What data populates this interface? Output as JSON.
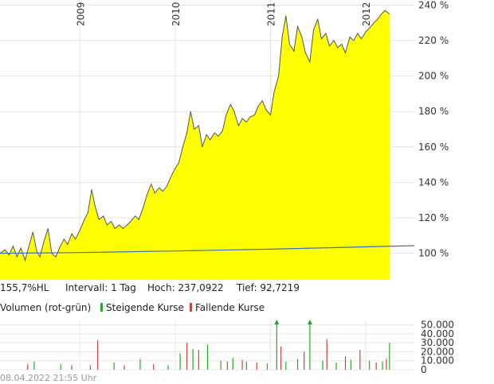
{
  "chart_data": [
    {
      "type": "area",
      "ylabel_unit": "%",
      "x_range": [
        "2008-03-01",
        "2012-07-05"
      ],
      "ylim": [
        85,
        242
      ],
      "y_ticks": [
        100,
        120,
        140,
        160,
        180,
        200,
        220,
        240
      ],
      "y_tick_labels": [
        "100 %",
        "120 %",
        "140 %",
        "160 %",
        "180 %",
        "200 %",
        "220 %",
        "240 %"
      ],
      "x_ticks": [
        "2009-01-01",
        "2010-01-01",
        "2011-01-01",
        "2012-01-01"
      ],
      "x_tick_labels": [
        "2009",
        "2010",
        "2011",
        "2012"
      ],
      "grid": true,
      "series": [
        {
          "color": "#ffff00",
          "points": [
            [
              "2008-03-01",
              100
            ],
            [
              "2008-03-20",
              102
            ],
            [
              "2008-04-05",
              99
            ],
            [
              "2008-04-20",
              104
            ],
            [
              "2008-05-05",
              98
            ],
            [
              "2008-05-20",
              103
            ],
            [
              "2008-06-05",
              96
            ],
            [
              "2008-06-20",
              104
            ],
            [
              "2008-07-05",
              112
            ],
            [
              "2008-07-20",
              101
            ],
            [
              "2008-08-01",
              98
            ],
            [
              "2008-08-15",
              106
            ],
            [
              "2008-09-01",
              114
            ],
            [
              "2008-09-15",
              100
            ],
            [
              "2008-10-01",
              98
            ],
            [
              "2008-10-15",
              103
            ],
            [
              "2008-11-01",
              108
            ],
            [
              "2008-11-15",
              105
            ],
            [
              "2008-12-01",
              111
            ],
            [
              "2008-12-15",
              108
            ],
            [
              "2009-01-01",
              113
            ],
            [
              "2009-01-15",
              118
            ],
            [
              "2009-02-01",
              123
            ],
            [
              "2009-02-15",
              136
            ],
            [
              "2009-03-01",
              126
            ],
            [
              "2009-03-15",
              119
            ],
            [
              "2009-04-01",
              121
            ],
            [
              "2009-04-15",
              116
            ],
            [
              "2009-05-01",
              118
            ],
            [
              "2009-05-15",
              114
            ],
            [
              "2009-06-01",
              116
            ],
            [
              "2009-06-15",
              114
            ],
            [
              "2009-07-01",
              116
            ],
            [
              "2009-07-15",
              118
            ],
            [
              "2009-08-01",
              121
            ],
            [
              "2009-08-15",
              119
            ],
            [
              "2009-09-01",
              126
            ],
            [
              "2009-09-15",
              133
            ],
            [
              "2009-10-01",
              139
            ],
            [
              "2009-10-15",
              134
            ],
            [
              "2009-11-01",
              137
            ],
            [
              "2009-11-15",
              135
            ],
            [
              "2009-12-01",
              138
            ],
            [
              "2009-12-15",
              143
            ],
            [
              "2010-01-01",
              148
            ],
            [
              "2010-01-15",
              151
            ],
            [
              "2010-02-01",
              161
            ],
            [
              "2010-02-15",
              168
            ],
            [
              "2010-03-01",
              180
            ],
            [
              "2010-03-15",
              170
            ],
            [
              "2010-04-01",
              172
            ],
            [
              "2010-04-15",
              160
            ],
            [
              "2010-05-01",
              167
            ],
            [
              "2010-05-15",
              164
            ],
            [
              "2010-06-01",
              168
            ],
            [
              "2010-06-15",
              166
            ],
            [
              "2010-07-01",
              169
            ],
            [
              "2010-07-15",
              178
            ],
            [
              "2010-08-01",
              184
            ],
            [
              "2010-08-15",
              180
            ],
            [
              "2010-09-01",
              172
            ],
            [
              "2010-09-15",
              176
            ],
            [
              "2010-10-01",
              174
            ],
            [
              "2010-10-15",
              177
            ],
            [
              "2010-11-01",
              178
            ],
            [
              "2010-11-15",
              183
            ],
            [
              "2010-12-01",
              186
            ],
            [
              "2010-12-15",
              181
            ],
            [
              "2011-01-01",
              178
            ],
            [
              "2011-01-15",
              191
            ],
            [
              "2011-02-01",
              200
            ],
            [
              "2011-02-15",
              222
            ],
            [
              "2011-03-01",
              234
            ],
            [
              "2011-03-15",
              218
            ],
            [
              "2011-04-01",
              214
            ],
            [
              "2011-04-15",
              228
            ],
            [
              "2011-05-01",
              222
            ],
            [
              "2011-05-15",
              213
            ],
            [
              "2011-06-01",
              208
            ],
            [
              "2011-06-15",
              226
            ],
            [
              "2011-07-01",
              232
            ],
            [
              "2011-07-15",
              221
            ],
            [
              "2011-08-01",
              224
            ],
            [
              "2011-08-15",
              217
            ],
            [
              "2011-09-01",
              220
            ],
            [
              "2011-09-15",
              216
            ],
            [
              "2011-10-01",
              218
            ],
            [
              "2011-10-15",
              213
            ],
            [
              "2011-11-01",
              222
            ],
            [
              "2011-11-15",
              220
            ],
            [
              "2011-12-01",
              224
            ],
            [
              "2011-12-15",
              221
            ],
            [
              "2012-01-01",
              225
            ],
            [
              "2012-01-15",
              227
            ],
            [
              "2012-02-01",
              230
            ],
            [
              "2012-02-15",
              232
            ],
            [
              "2012-03-01",
              235
            ],
            [
              "2012-03-15",
              237
            ],
            [
              "2012-04-01",
              235
            ]
          ]
        },
        {
          "color": "#3b6fb6",
          "points": [
            [
              "2008-03-01",
              100
            ],
            [
              "2009-01-01",
              100.4
            ],
            [
              "2010-01-01",
              101.3
            ],
            [
              "2011-01-01",
              102.3
            ],
            [
              "2012-01-01",
              103.6
            ],
            [
              "2012-07-05",
              104.3
            ]
          ]
        }
      ]
    },
    {
      "type": "bar",
      "title": "Volumen (rot-grün)",
      "ylim": [
        0,
        55000
      ],
      "y_ticks": [
        0,
        10000,
        20000,
        30000,
        40000,
        50000
      ],
      "y_tick_labels": [
        "0",
        "10.000",
        "20.000",
        "30.000",
        "40.000",
        "50.000"
      ],
      "up_color": "#22aa22",
      "down_color": "#cc4444",
      "series": [
        {
          "name": "Steigende Kurse",
          "values": [
            [
              "2008-07-10",
              9000
            ],
            [
              "2008-10-20",
              6000
            ],
            [
              "2009-02-10",
              5000
            ],
            [
              "2009-05-12",
              8000
            ],
            [
              "2009-08-20",
              12000
            ],
            [
              "2009-12-05",
              5000
            ],
            [
              "2010-01-20",
              18000
            ],
            [
              "2010-03-10",
              23000
            ],
            [
              "2010-05-05",
              28000
            ],
            [
              "2010-06-25",
              10000
            ],
            [
              "2010-08-10",
              13000
            ],
            [
              "2010-10-01",
              9000
            ],
            [
              "2010-12-20",
              7000
            ],
            [
              "2011-01-25",
              58000
            ],
            [
              "2011-03-01",
              9000
            ],
            [
              "2011-04-15",
              12000
            ],
            [
              "2011-06-01",
              58000
            ],
            [
              "2011-07-20",
              10000
            ],
            [
              "2011-09-10",
              8000
            ],
            [
              "2011-11-05",
              11000
            ],
            [
              "2012-01-15",
              10000
            ],
            [
              "2012-03-05",
              9000
            ],
            [
              "2012-04-01",
              30000
            ]
          ]
        },
        {
          "name": "Fallende Kurse",
          "values": [
            [
              "2008-06-15",
              6000
            ],
            [
              "2008-12-01",
              5000
            ],
            [
              "2009-03-10",
              33000
            ],
            [
              "2009-06-20",
              5000
            ],
            [
              "2009-10-10",
              6000
            ],
            [
              "2010-02-15",
              30000
            ],
            [
              "2010-04-01",
              22000
            ],
            [
              "2010-07-20",
              9000
            ],
            [
              "2010-09-15",
              11000
            ],
            [
              "2010-11-10",
              8000
            ],
            [
              "2011-02-10",
              26000
            ],
            [
              "2011-05-10",
              20000
            ],
            [
              "2011-08-05",
              34000
            ],
            [
              "2011-10-15",
              15000
            ],
            [
              "2011-12-10",
              22000
            ],
            [
              "2012-02-10",
              8000
            ],
            [
              "2012-03-20",
              12000
            ]
          ]
        }
      ]
    }
  ],
  "info": {
    "performance": "155,7%HL",
    "interval": "Intervall: 1 Tag",
    "high": "Hoch: 237,0922",
    "low": "Tief: 92,7219"
  },
  "volume_header": {
    "title": "Volumen (rot-grün)",
    "up_label": "Steigende Kurse",
    "down_label": "Fallende Kurse"
  },
  "footer": {
    "timestamp": "08.04.2022 21:55 Uhr"
  }
}
